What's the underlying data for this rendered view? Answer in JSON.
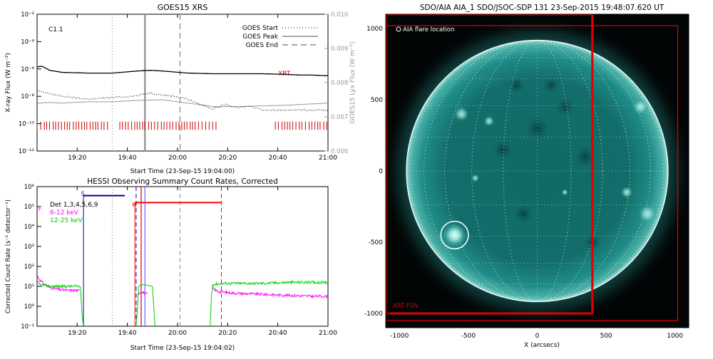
{
  "chart_data": [
    {
      "type": "line",
      "title": "GOES15 XRS",
      "xlabel": "Start Time (23-Sep-15 19:04:00)",
      "ylabel": "X-ray Flux (W m⁻²)",
      "y2label": "GOES15 Lyx Flux (W m⁻²)",
      "xlim_minutes": [
        0,
        116
      ],
      "xticks": [
        "19:20",
        "19:40",
        "20:00",
        "20:20",
        "20:40",
        "21:00"
      ],
      "ylim_log10": [
        -12,
        -2
      ],
      "yticks": [
        "10⁻²",
        "10⁻⁴",
        "10⁻⁶",
        "10⁻⁸",
        "10⁻¹⁰",
        "10⁻¹²"
      ],
      "y2lim": [
        0.006,
        0.01
      ],
      "y2ticks": [
        "0.010",
        "0.009",
        "0.008",
        "0.007",
        "0.006"
      ],
      "class_label": "C1.1",
      "xrt_label": "XRT",
      "legend": [
        {
          "label": "GOES Start",
          "style": "dotted"
        },
        {
          "label": "GOES Peak",
          "style": "solid"
        },
        {
          "label": "GOES End",
          "style": "dashed"
        }
      ],
      "events_minutes": {
        "start": 30,
        "peak": 43,
        "end": 57
      },
      "series": [
        {
          "kind": "long",
          "color": "#000000",
          "x": [
            0,
            2,
            5,
            10,
            20,
            30,
            40,
            45,
            50,
            60,
            70,
            80,
            90,
            100,
            105,
            110,
            116
          ],
          "log10": [
            -5.85,
            -5.8,
            -6.1,
            -6.25,
            -6.3,
            -6.3,
            -6.15,
            -6.1,
            -6.15,
            -6.3,
            -6.35,
            -6.35,
            -6.35,
            -6.4,
            -6.45,
            -6.45,
            -6.5
          ]
        },
        {
          "kind": "lyx",
          "color": "#999999",
          "x": [
            0,
            5,
            10,
            20,
            30,
            40,
            50,
            60,
            65,
            70,
            80,
            90,
            100,
            105,
            110,
            116
          ],
          "log10": [
            -8.5,
            -8.45,
            -8.5,
            -8.4,
            -8.4,
            -8.3,
            -8.25,
            -8.5,
            -8.6,
            -8.75,
            -8.75,
            -8.7,
            -8.65,
            -8.6,
            -8.55,
            -8.5
          ]
        },
        {
          "kind": "short",
          "color": "#000000",
          "x": [
            0,
            5,
            10,
            20,
            30,
            40,
            45,
            50,
            55,
            60,
            65,
            70,
            72,
            75,
            80,
            85,
            90,
            100,
            110,
            116
          ],
          "log10": [
            -7.6,
            -7.8,
            -8.0,
            -8.2,
            -8.1,
            -7.95,
            -7.75,
            -7.9,
            -8.0,
            -8.2,
            -8.6,
            -8.9,
            -8.8,
            -8.6,
            -8.85,
            -8.7,
            -9.0,
            -9.0,
            -9.0,
            -9.0
          ]
        }
      ],
      "rhessi_obs_bins_minutes": [
        [
          0,
          29
        ],
        [
          33,
          72
        ],
        [
          95,
          116
        ]
      ]
    },
    {
      "type": "line",
      "title": "HESSI Observing Summary Count Rates, Corrected",
      "xlabel": "Start Time (23-Sep-15 19:04:02)",
      "ylabel": "Corrected Count Rate (s⁻¹ detector⁻¹)",
      "xlim_minutes": [
        0,
        116
      ],
      "xticks": [
        "19:20",
        "19:40",
        "20:00",
        "20:20",
        "20:40",
        "21:00"
      ],
      "ylim_log10": [
        -1,
        6
      ],
      "yticks": [
        "10⁶",
        "10⁵",
        "10⁴",
        "10³",
        "10²",
        "10¹",
        "10⁰",
        "10⁻¹"
      ],
      "legend": [
        {
          "label": "Det 1,3,4,5,6,9",
          "color": "#000000"
        },
        {
          "label": "6-12 keV",
          "color": "#ff00ff"
        },
        {
          "label": "12-25 keV",
          "color": "#00cc00"
        }
      ],
      "flags": [
        {
          "label": "S",
          "color": "#000099",
          "x0": 18.5,
          "x1": 35,
          "log10": 5.55
        },
        {
          "label": "F",
          "color": "#ff00ff",
          "x0": 0,
          "x1": 0,
          "log10": 5.0
        },
        {
          "label": "N",
          "color": "#ff0000",
          "x0": 39,
          "x1": 73.5,
          "log10": 5.2
        }
      ],
      "lines": [
        {
          "x": 39.5,
          "style": "dashed",
          "color": "#000099"
        },
        {
          "x": 73.5,
          "style": "dashed",
          "color": "#ff0000"
        },
        {
          "x": 41.5,
          "style": "solid",
          "color": "#cc0000"
        },
        {
          "x": 43,
          "style": "solid",
          "color": "#6666ff"
        },
        {
          "x": 30,
          "style": "dotted",
          "color": "#808080"
        },
        {
          "x": 57,
          "style": "dashed",
          "color": "#888888"
        }
      ],
      "series": [
        {
          "name": "6-12 keV",
          "color": "#ff00ff",
          "segments": [
            {
              "x": [
                0,
                1,
                2,
                3,
                5,
                8,
                12,
                15,
                17
              ],
              "log10": [
                1.55,
                1.35,
                1.2,
                1.1,
                0.95,
                0.85,
                0.8,
                0.8,
                0.78
              ]
            },
            {
              "x": [
                40,
                41,
                42,
                43,
                44
              ],
              "log10": [
                0.6,
                0.7,
                0.7,
                0.65,
                0.6
              ]
            },
            {
              "x": [
                70,
                72,
                75,
                80,
                90,
                100,
                110,
                116
              ],
              "log10": [
                0.9,
                0.75,
                0.7,
                0.65,
                0.6,
                0.55,
                0.5,
                0.5
              ]
            }
          ]
        },
        {
          "name": "12-25 keV",
          "color": "#00cc00",
          "segments": [
            {
              "x": [
                0,
                1,
                2,
                3,
                5,
                8,
                12,
                15,
                17
              ],
              "log10": [
                1.25,
                1.1,
                1.05,
                1.05,
                1.0,
                1.0,
                1.0,
                1.0,
                1.0
              ]
            },
            {
              "x": [
                17.2,
                17.5,
                18,
                18.5
              ],
              "log10": [
                1.0,
                0.5,
                -0.5,
                -1.0
              ]
            },
            {
              "x": [
                39.5,
                40,
                40.5
              ],
              "log10": [
                -1.0,
                -0.2,
                1.0
              ]
            },
            {
              "x": [
                40.5,
                42,
                44,
                46
              ],
              "log10": [
                1.0,
                1.1,
                1.05,
                1.0
              ]
            },
            {
              "x": [
                46,
                46.5,
                47
              ],
              "log10": [
                1.0,
                0,
                -1.0
              ]
            },
            {
              "x": [
                69,
                69.5,
                70
              ],
              "log10": [
                -1.0,
                0.4,
                1.1
              ]
            },
            {
              "x": [
                70,
                75,
                80,
                90,
                100,
                110,
                116
              ],
              "log10": [
                1.1,
                1.15,
                1.15,
                1.15,
                1.2,
                1.2,
                1.2
              ]
            }
          ]
        }
      ]
    },
    {
      "type": "heatmap",
      "title": "SDO/AIA AIA_1 SDO/JSOC-SDP 131 23-Sep-2015 19:48:07.620 UT",
      "xlabel": "X (arcsecs)",
      "ylabel": "",
      "xlim": [
        -1100,
        1100
      ],
      "ylim": [
        -1100,
        1100
      ],
      "xticks": [
        "-1000",
        "-500",
        "0",
        "500",
        "1000"
      ],
      "yticks": [
        "1000",
        "500",
        "0",
        "-500",
        "-1000"
      ],
      "flare_label": "AIA flare location",
      "flare_location": {
        "x": -600,
        "y": -450
      },
      "fov_label": "XRT FOV",
      "xrt_fov": [
        {
          "x0": -1100,
          "y0": -1000,
          "x1": 400,
          "y1": 1100
        },
        {
          "x0": -1100,
          "y0": -1050,
          "x1": 1020,
          "y1": 1020
        }
      ],
      "disk_radius_arcsec": 950
    }
  ]
}
